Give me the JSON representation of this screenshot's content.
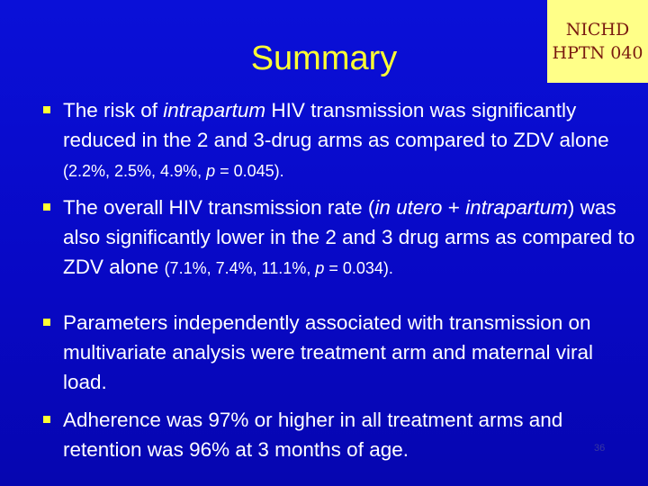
{
  "title": "Summary",
  "logo": {
    "lines": [
      "NICHD",
      "HPTN 040"
    ]
  },
  "bullets": [
    {
      "runs": [
        "The risk of ",
        "intrapartum",
        " HIV transmission was significantly reduced in the 2 and 3-drug arms as compared to ZDV alone ",
        "(2.2%, 2.5%, 4.9%, ",
        "p",
        " = 0.045)."
      ]
    },
    {
      "runs": [
        " The overall HIV transmission rate (",
        "in utero",
        " + ",
        "intrapartum",
        ") was also significantly lower in the 2 and 3 drug arms as compared to ZDV alone ",
        "(7.1%, 7.4%, 11.1%, ",
        "p",
        " = 0.034)."
      ]
    },
    {
      "runs": [
        "Parameters independently associated with transmission on multivariate analysis were treatment arm and maternal viral load."
      ]
    },
    {
      "runs": [
        "Adherence was 97% or higher in all treatment arms and retention was 96% at 3 months of age."
      ]
    }
  ],
  "page_number": "36"
}
